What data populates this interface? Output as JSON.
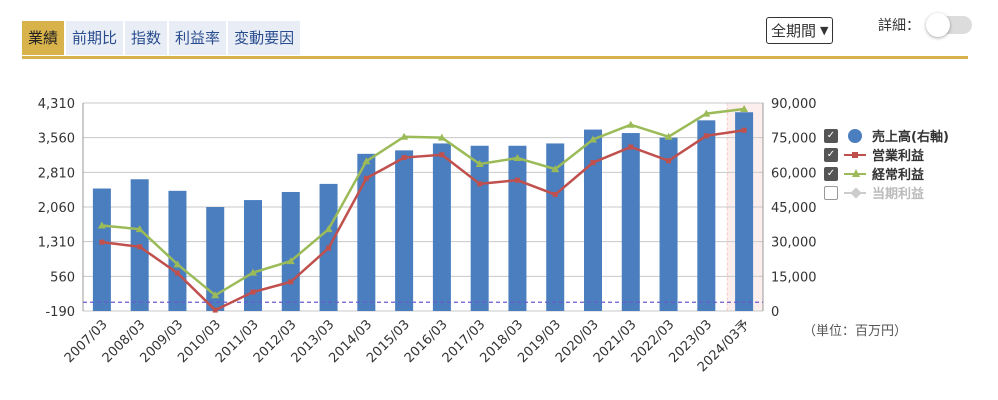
{
  "tabs": [
    {
      "label": "業績",
      "active": true
    },
    {
      "label": "前期比",
      "active": false
    },
    {
      "label": "指数",
      "active": false
    },
    {
      "label": "利益率",
      "active": false
    },
    {
      "label": "変動要因",
      "active": false
    }
  ],
  "period_select": "全期間",
  "detail_label": "詳細：",
  "unit_label": "（単位：百万円）",
  "legend": [
    {
      "label": "売上高(右軸)",
      "checked": true,
      "color": "#4a7ebf"
    },
    {
      "label": "営業利益",
      "checked": true,
      "color": "#c0504d"
    },
    {
      "label": "経常利益",
      "checked": true,
      "color": "#9bbb59"
    },
    {
      "label": "当期利益",
      "checked": false,
      "color": "#cccccc"
    }
  ],
  "chart_data": {
    "type": "bar",
    "categories": [
      "2007/03",
      "2008/03",
      "2009/03",
      "2010/03",
      "2011/03",
      "2012/03",
      "2013/03",
      "2014/03",
      "2015/03",
      "2016/03",
      "2017/03",
      "2018/03",
      "2019/03",
      "2020/03",
      "2021/03",
      "2022/03",
      "2023/03",
      "2024/03予"
    ],
    "left_axis": {
      "ticks": [
        "4,310",
        "3,560",
        "2,810",
        "2,060",
        "1,310",
        "560",
        "-190"
      ],
      "ylim": [
        -190,
        4310
      ]
    },
    "right_axis": {
      "ticks": [
        "90,000",
        "75,000",
        "60,000",
        "45,000",
        "30,000",
        "15,000",
        "0"
      ],
      "ylim": [
        0,
        90000
      ]
    },
    "series": [
      {
        "name": "売上高(右軸)",
        "type": "bar",
        "axis": "right",
        "color": "#4a7ebf",
        "values": [
          53000,
          57000,
          52000,
          45000,
          48000,
          51500,
          55000,
          68000,
          69500,
          72500,
          71500,
          71500,
          72500,
          78500,
          77000,
          75000,
          82500,
          86000
        ]
      },
      {
        "name": "営業利益",
        "type": "line",
        "axis": "left",
        "color": "#c0504d",
        "values": [
          1300,
          1200,
          630,
          -170,
          220,
          440,
          1170,
          2680,
          3130,
          3190,
          2560,
          2640,
          2330,
          3020,
          3360,
          3060,
          3600,
          3720
        ]
      },
      {
        "name": "経常利益",
        "type": "line",
        "axis": "left",
        "color": "#9bbb59",
        "values": [
          1660,
          1580,
          820,
          150,
          640,
          890,
          1580,
          3050,
          3580,
          3560,
          2990,
          3120,
          2880,
          3520,
          3840,
          3580,
          4080,
          4180
        ]
      }
    ],
    "forecast_highlight": "2024/03予",
    "reference_line": {
      "axis": "left",
      "value": 0,
      "color": "#6a5acd",
      "style": "dashed"
    },
    "grid": true,
    "legend_position": "right"
  }
}
